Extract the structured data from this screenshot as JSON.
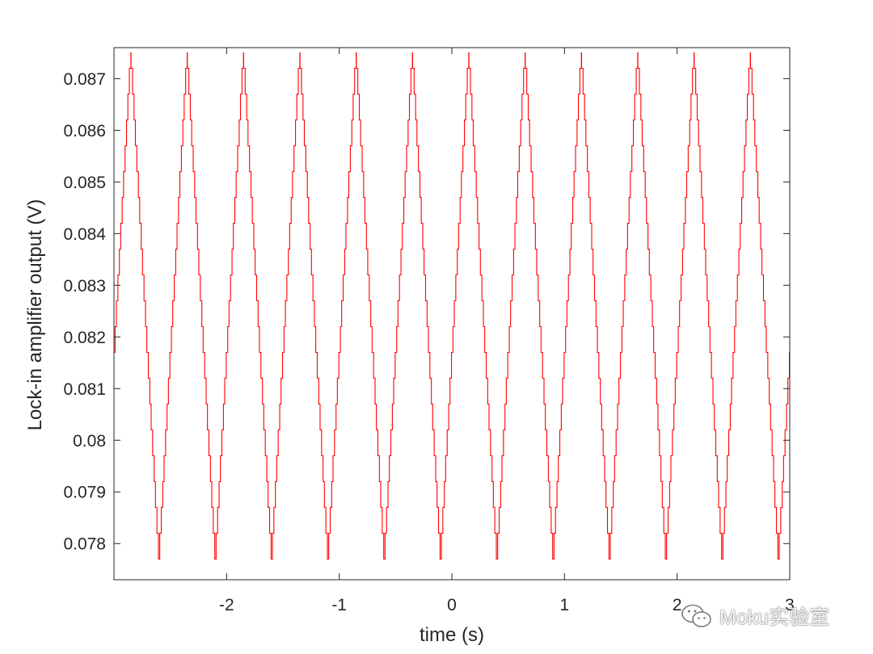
{
  "chart_data": {
    "type": "line",
    "title": "",
    "xlabel": "time (s)",
    "ylabel": "Lock-in amplifier output (V)",
    "xlim": [
      -3,
      3
    ],
    "ylim": [
      0.0773,
      0.0876
    ],
    "xticks": [
      -2,
      -1,
      0,
      1,
      2,
      3
    ],
    "xtick_labels": [
      "-2",
      "-1",
      "0",
      "1",
      "2",
      "3"
    ],
    "yticks": [
      0.078,
      0.079,
      0.08,
      0.081,
      0.082,
      0.083,
      0.084,
      0.085,
      0.086,
      0.087
    ],
    "ytick_labels": [
      "0.078",
      "0.079",
      "0.08",
      "0.081",
      "0.082",
      "0.083",
      "0.084",
      "0.085",
      "0.086",
      "0.087"
    ],
    "grid": false,
    "box": true,
    "series": [
      {
        "name": "",
        "color": "#ff0000",
        "waveform": "triangle-staircase",
        "period_s": 0.5,
        "peak_times_s": [
          -2.85,
          -2.35,
          -1.85,
          -1.35,
          -0.85,
          -0.35,
          0.15,
          0.65,
          1.15,
          1.65,
          2.15,
          2.65
        ],
        "trough_times_s": [
          -2.6,
          -2.1,
          -1.6,
          -1.1,
          -0.6,
          -0.1,
          0.4,
          0.9,
          1.4,
          1.9,
          2.4,
          2.9
        ],
        "max_V": 0.0875,
        "min_V": 0.0777,
        "step_V": 0.0005
      }
    ]
  },
  "watermark": {
    "icon": "wechat-icon",
    "text": "Moku实验室"
  }
}
